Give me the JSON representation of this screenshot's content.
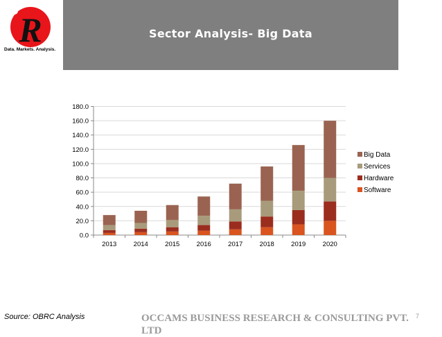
{
  "logo": {
    "letter": "R",
    "tagline": "Data. Markets. Analysis."
  },
  "slide": {
    "title": "Sector Analysis- Big Data",
    "source": "Source: OBRC Analysis",
    "footer": "OCCAMS BUSINESS RESEARCH & CONSULTING PVT. LTD",
    "page_number": "7"
  },
  "colors": {
    "banner": "#7f7f7f",
    "software": "#d9541e",
    "hardware": "#9b2d1f",
    "services": "#a89b7c",
    "big_data": "#9a6351"
  },
  "chart_data": {
    "type": "bar",
    "stacked": true,
    "categories": [
      "2013",
      "2014",
      "2015",
      "2016",
      "2017",
      "2018",
      "2019",
      "2020"
    ],
    "series": [
      {
        "name": "Software",
        "color": "#d9541e",
        "values": [
          3,
          4,
          5,
          6,
          8,
          11,
          15,
          20
        ]
      },
      {
        "name": "Hardware",
        "color": "#9b2d1f",
        "values": [
          4,
          5,
          6,
          8,
          11,
          15,
          20,
          27
        ]
      },
      {
        "name": "Services",
        "color": "#a89b7c",
        "values": [
          7,
          8,
          10,
          13,
          17,
          22,
          27,
          33
        ]
      },
      {
        "name": "Big Data",
        "color": "#9a6351",
        "values": [
          14,
          17,
          21,
          27,
          36,
          48,
          64,
          80
        ]
      }
    ],
    "y_tick_labels": [
      "0.0",
      "20.0",
      "40.0",
      "60.0",
      "80.0",
      "100.0",
      "120.0",
      "140.0",
      "160.0",
      "180.0"
    ],
    "ylim": [
      0,
      180
    ],
    "grid": true,
    "legend_position": "right",
    "legend_order": [
      "Big Data",
      "Services",
      "Hardware",
      "Software"
    ]
  }
}
